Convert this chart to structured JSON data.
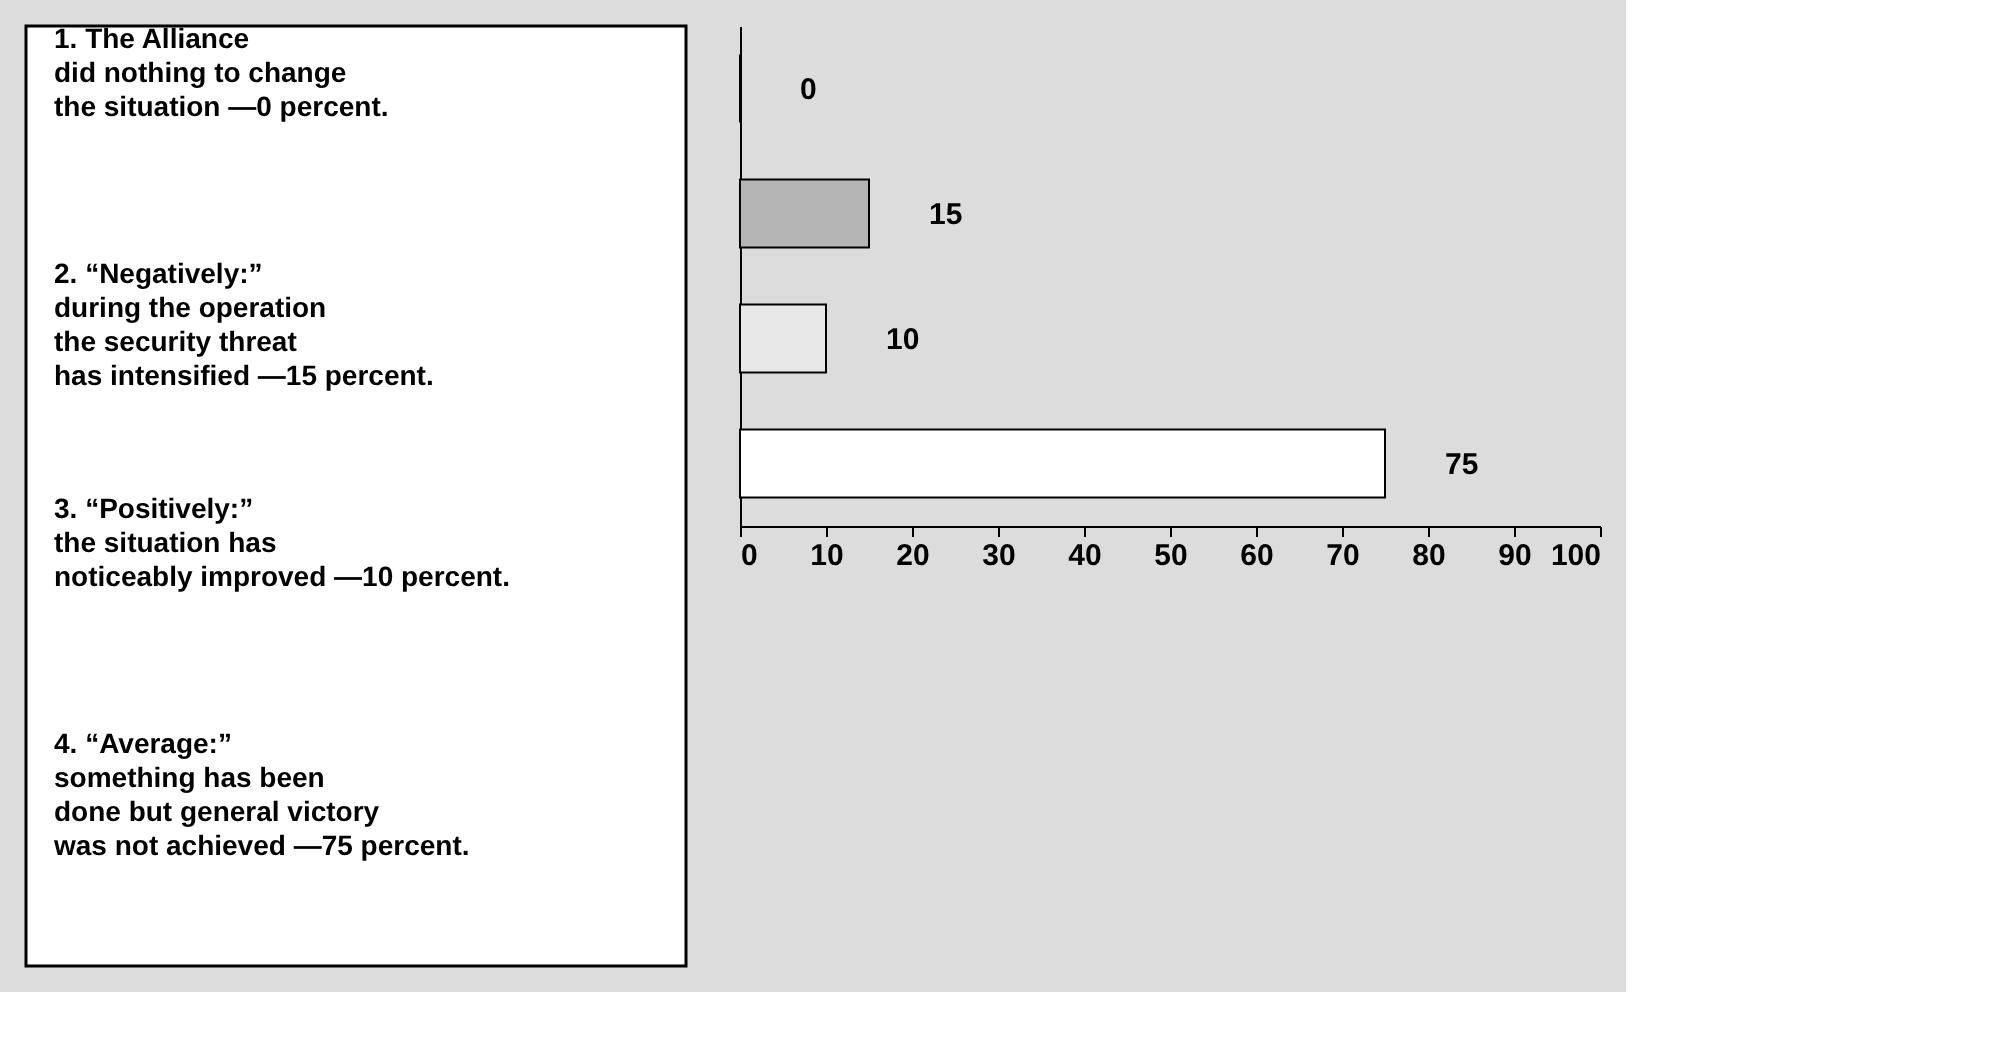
{
  "chart_data": {
    "type": "bar",
    "orientation": "horizontal",
    "categories": [
      null,
      null,
      null,
      null
    ],
    "values": [
      0,
      15,
      10,
      75
    ],
    "colors": [
      "#000000",
      "#b4b4b4",
      "#e8e8e8",
      "#ffffff"
    ],
    "xlim": [
      0,
      100
    ],
    "xticks": [
      0,
      10,
      20,
      30,
      40,
      50,
      60,
      70,
      80,
      90,
      100
    ],
    "data_labels": true,
    "tick_labels": "x",
    "annotations": [
      "1. The Alliance\ndid nothing to change\nthe situation —0 percent.",
      "2. “Negatively:”\nduring the operation\nthe security threat\nhas intensified —15 percent.",
      "3. “Positively:”\nthe situation has\nnoticeably improved —10 percent.",
      "4. “Average:”\nsomething has been\ndone but general victory\nwas not achieved —75 percent."
    ]
  }
}
